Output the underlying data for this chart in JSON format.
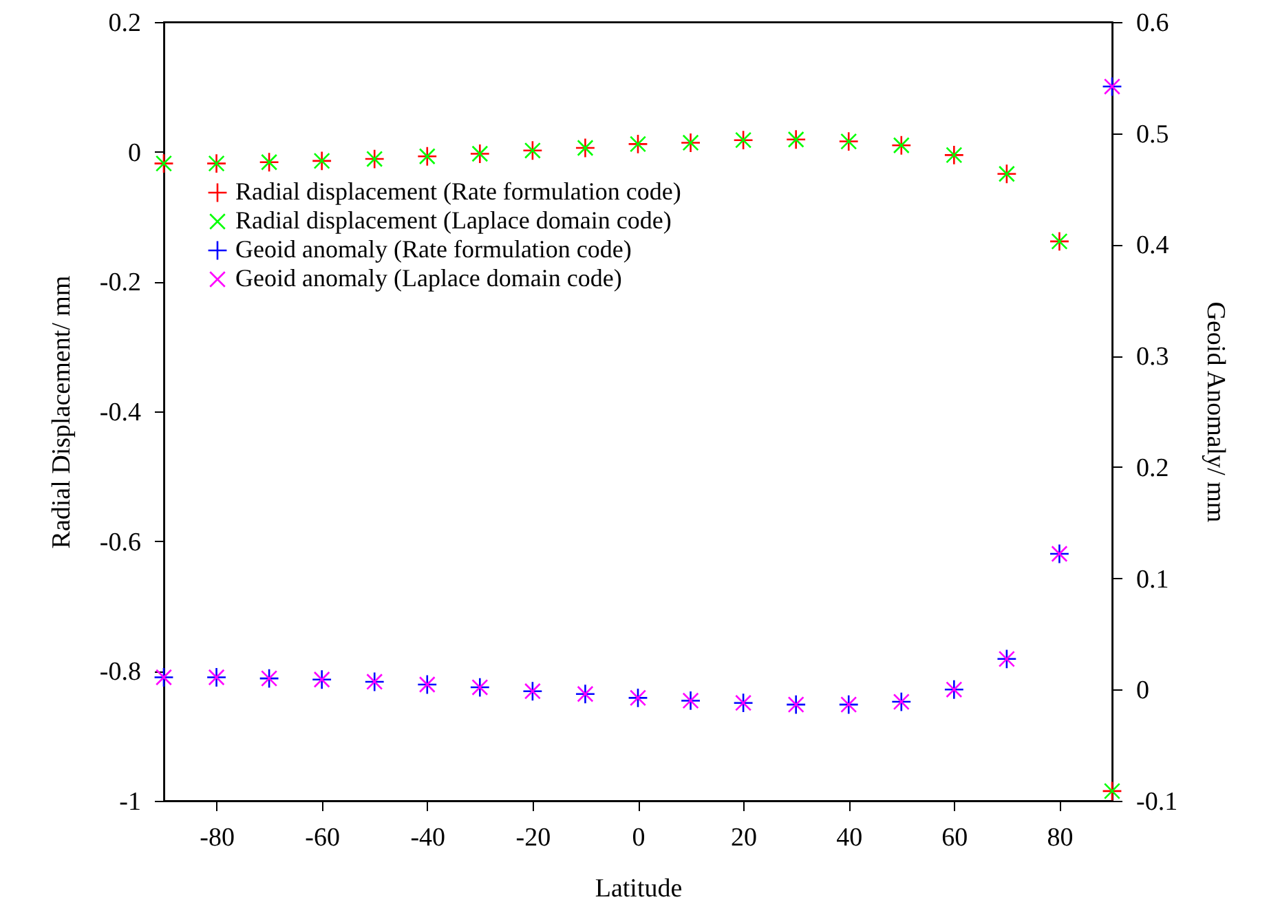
{
  "chart_data": {
    "type": "scatter",
    "xlabel": "Latitude",
    "ylabel": "Radial Displacement/ mm",
    "y2label": "Geoid Anomaly/ mm",
    "x": [
      -90,
      -80,
      -70,
      -60,
      -50,
      -40,
      -30,
      -20,
      -10,
      0,
      10,
      20,
      30,
      40,
      50,
      60,
      70,
      80,
      90
    ],
    "series": [
      {
        "name": "Radial displacement (Rate formulation code)",
        "color": "#ff0000",
        "marker": "plus",
        "values": [
          -0.018,
          -0.018,
          -0.016,
          -0.014,
          -0.011,
          -0.007,
          -0.003,
          0.002,
          0.006,
          0.012,
          0.014,
          0.018,
          0.019,
          0.016,
          0.01,
          -0.005,
          -0.034,
          -0.138,
          -0.985
        ]
      },
      {
        "name": "Radial displacement (Laplace domain code)",
        "color": "#00ff00",
        "marker": "cross",
        "values": [
          -0.018,
          -0.018,
          -0.016,
          -0.014,
          -0.011,
          -0.007,
          -0.003,
          0.002,
          0.006,
          0.012,
          0.014,
          0.018,
          0.019,
          0.016,
          0.01,
          -0.005,
          -0.034,
          -0.138,
          -0.985
        ]
      },
      {
        "name": "Geoid anomaly (Rate formulation code)",
        "color": "#0000ff",
        "marker": "plus",
        "axis": "y2",
        "values": [
          0.011,
          0.011,
          0.01,
          0.009,
          0.007,
          0.0045,
          0.002,
          -0.0015,
          -0.004,
          -0.0075,
          -0.01,
          -0.012,
          -0.0135,
          -0.0135,
          -0.011,
          0.0,
          0.0275,
          0.122,
          0.542
        ]
      },
      {
        "name": "Geoid anomaly (Laplace domain code)",
        "color": "#ff00ff",
        "marker": "cross",
        "axis": "y2",
        "values": [
          0.011,
          0.011,
          0.01,
          0.009,
          0.007,
          0.0045,
          0.002,
          -0.0015,
          -0.004,
          -0.0075,
          -0.01,
          -0.012,
          -0.0135,
          -0.0135,
          -0.011,
          0.0,
          0.0275,
          0.122,
          0.542
        ]
      }
    ],
    "xlim": [
      -90,
      90
    ],
    "xticks": [
      -80,
      -60,
      -40,
      -20,
      0,
      20,
      40,
      60,
      80
    ],
    "ylim": [
      -1,
      0.2
    ],
    "yticks": [
      -1,
      -0.8,
      -0.6,
      -0.4,
      -0.2,
      0,
      0.2
    ],
    "y2lim": [
      -0.1,
      0.6
    ],
    "y2ticks": [
      -0.1,
      0,
      0.1,
      0.2,
      0.3,
      0.4,
      0.5,
      0.6
    ],
    "legend": "top",
    "grid": false
  }
}
